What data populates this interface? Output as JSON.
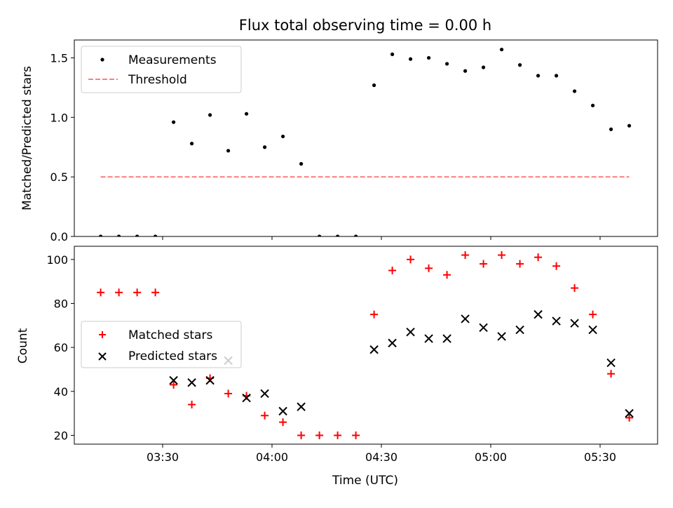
{
  "chart_data": [
    {
      "type": "scatter",
      "title": "Flux total observing time = 0.00 h",
      "xlabel": "",
      "ylabel": "Matched/Predicted stars",
      "ylim": [
        0,
        1.65
      ],
      "yticks": [
        "0.0",
        "0.5",
        "1.0",
        "1.5"
      ],
      "legend_position": "top-left",
      "series": [
        {
          "name": "Measurements",
          "kind": "point",
          "color": "#000000",
          "x": [
            "03:13",
            "03:18",
            "03:23",
            "03:28",
            "03:33",
            "03:38",
            "03:43",
            "03:48",
            "03:53",
            "03:58",
            "04:03",
            "04:08",
            "04:13",
            "04:18",
            "04:23",
            "04:28",
            "04:33",
            "04:38",
            "04:43",
            "04:48",
            "04:53",
            "04:58",
            "05:03",
            "05:08",
            "05:13",
            "05:18",
            "05:23",
            "05:28",
            "05:33",
            "05:38"
          ],
          "y": [
            0,
            0,
            0,
            0,
            0.96,
            0.78,
            1.02,
            0.72,
            1.03,
            0.75,
            0.84,
            0.61,
            0,
            0,
            0,
            1.27,
            1.53,
            1.49,
            1.5,
            1.45,
            1.39,
            1.42,
            1.57,
            1.44,
            1.35,
            1.35,
            1.22,
            1.1,
            0.9,
            0.93
          ]
        },
        {
          "name": "Threshold",
          "kind": "dashed-line",
          "color": "#ff7f7f",
          "x": [
            "03:13",
            "05:38"
          ],
          "y": [
            0.5,
            0.5
          ]
        }
      ]
    },
    {
      "type": "scatter",
      "title": "",
      "xlabel": "Time (UTC)",
      "ylabel": "Count",
      "ylim": [
        16,
        106
      ],
      "yticks": [
        "20",
        "40",
        "60",
        "80",
        "100"
      ],
      "xticks": [
        "03:30",
        "04:00",
        "04:30",
        "05:00",
        "05:30"
      ],
      "legend_position": "center-left",
      "series": [
        {
          "name": "Matched stars",
          "kind": "plus",
          "color": "#ff0000",
          "x": [
            "03:13",
            "03:18",
            "03:23",
            "03:28",
            "03:33",
            "03:38",
            "03:43",
            "03:48",
            "03:53",
            "03:58",
            "04:03",
            "04:08",
            "04:13",
            "04:18",
            "04:23",
            "04:28",
            "04:33",
            "04:38",
            "04:43",
            "04:48",
            "04:53",
            "04:58",
            "05:03",
            "05:08",
            "05:13",
            "05:18",
            "05:23",
            "05:28",
            "05:33",
            "05:38"
          ],
          "y": [
            85,
            85,
            85,
            85,
            43,
            34,
            46,
            39,
            38,
            29,
            26,
            20,
            20,
            20,
            20,
            75,
            95,
            100,
            96,
            93,
            102,
            98,
            102,
            98,
            101,
            97,
            87,
            75,
            48,
            28
          ]
        },
        {
          "name": "Predicted stars",
          "kind": "x",
          "color": "#000000",
          "x": [
            "03:33",
            "03:38",
            "03:43",
            "03:48",
            "03:53",
            "03:58",
            "04:03",
            "04:08",
            "04:28",
            "04:33",
            "04:38",
            "04:43",
            "04:48",
            "04:53",
            "04:58",
            "05:03",
            "05:08",
            "05:13",
            "05:18",
            "05:23",
            "05:28",
            "05:33",
            "05:38"
          ],
          "y": [
            45,
            44,
            45,
            54,
            37,
            39,
            31,
            33,
            59,
            62,
            67,
            64,
            64,
            73,
            69,
            65,
            68,
            75,
            72,
            71,
            68,
            53,
            30
          ]
        }
      ]
    }
  ]
}
